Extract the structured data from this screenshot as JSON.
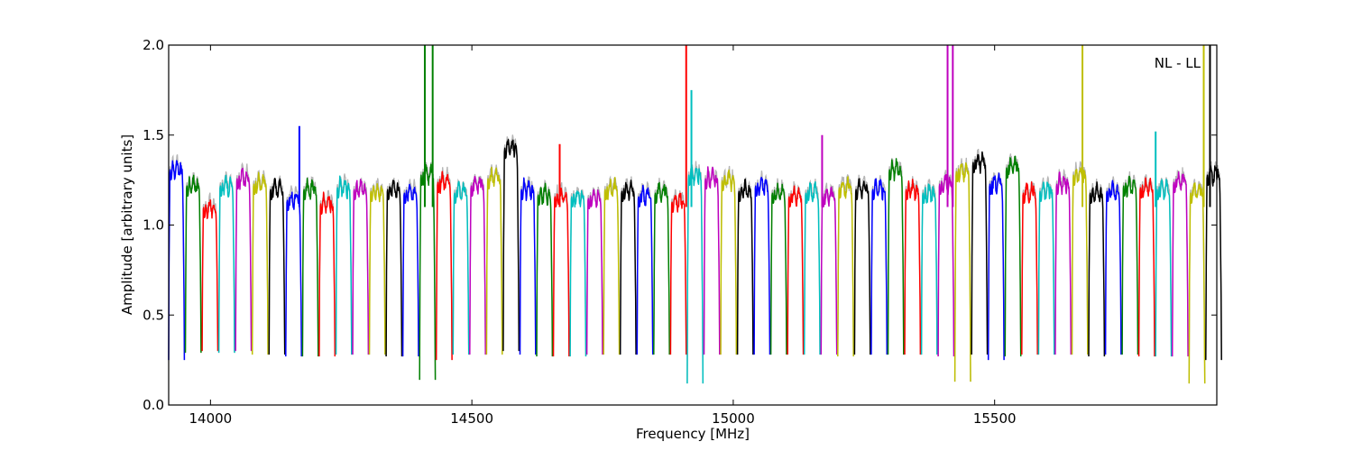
{
  "chart_data": {
    "type": "line",
    "title": "",
    "xlabel": "Frequency [MHz]",
    "ylabel": "Amplitude [arbitrary units]",
    "xlim": [
      13920,
      15925
    ],
    "ylim": [
      0.0,
      2.0
    ],
    "xticks": [
      14000,
      14500,
      15000,
      15500
    ],
    "xtick_labels": [
      "14000",
      "14500",
      "15000",
      "15500"
    ],
    "yticks": [
      0.0,
      0.5,
      1.0,
      1.5,
      2.0
    ],
    "ytick_labels": [
      "0.0",
      "0.5",
      "1.0",
      "1.5",
      "2.0"
    ],
    "grid": false,
    "annotation": "NL - LL",
    "annotation_position": "top-right",
    "subband_width_mhz": 32,
    "color_cycle": [
      "#0000ff",
      "#008000",
      "#ff0000",
      "#00bfbf",
      "#bf00bf",
      "#bfbf00",
      "#000000"
    ],
    "background_series_color": "#b5b5b5",
    "subband_start_mhz": [
      13920,
      13952,
      13984,
      14016,
      14048,
      14080,
      14112,
      14144,
      14176,
      14208,
      14240,
      14272,
      14304,
      14336,
      14368,
      14400,
      14432,
      14464,
      14496,
      14528,
      14560,
      14592,
      14624,
      14656,
      14688,
      14720,
      14752,
      14784,
      14816,
      14848,
      14880,
      14912,
      14944,
      14976,
      15008,
      15040,
      15072,
      15104,
      15136,
      15168,
      15200,
      15232,
      15264,
      15296,
      15328,
      15360,
      15392,
      15424,
      15456,
      15488,
      15520,
      15552,
      15584,
      15616,
      15648,
      15680,
      15712,
      15744,
      15776,
      15808,
      15840,
      15872,
      15904
    ],
    "subband_plateau": [
      1.33,
      1.24,
      1.12,
      1.24,
      1.28,
      1.25,
      1.22,
      1.16,
      1.22,
      1.14,
      1.23,
      1.22,
      1.21,
      1.22,
      1.2,
      1.3,
      1.26,
      1.2,
      1.24,
      1.28,
      1.45,
      1.22,
      1.19,
      1.18,
      1.18,
      1.17,
      1.22,
      1.21,
      1.18,
      1.2,
      1.15,
      1.3,
      1.28,
      1.27,
      1.21,
      1.24,
      1.2,
      1.18,
      1.2,
      1.18,
      1.23,
      1.22,
      1.22,
      1.33,
      1.22,
      1.2,
      1.25,
      1.32,
      1.37,
      1.25,
      1.34,
      1.2,
      1.21,
      1.25,
      1.3,
      1.2,
      1.21,
      1.24,
      1.23,
      1.22,
      1.26,
      1.2,
      1.3
    ],
    "subband_minimum": [
      0.25,
      0.29,
      0.3,
      0.29,
      0.3,
      0.28,
      0.28,
      0.27,
      0.27,
      0.27,
      0.28,
      0.28,
      0.28,
      0.27,
      0.27,
      0.14,
      0.25,
      0.28,
      0.28,
      0.28,
      0.3,
      0.28,
      0.27,
      0.27,
      0.27,
      0.28,
      0.28,
      0.28,
      0.28,
      0.28,
      0.28,
      0.12,
      0.28,
      0.28,
      0.28,
      0.28,
      0.28,
      0.28,
      0.28,
      0.28,
      0.27,
      0.28,
      0.28,
      0.28,
      0.28,
      0.28,
      0.27,
      0.13,
      0.28,
      0.25,
      0.27,
      0.28,
      0.28,
      0.28,
      0.28,
      0.27,
      0.28,
      0.28,
      0.27,
      0.27,
      0.27,
      0.12,
      0.25
    ],
    "spikes": [
      {
        "x": 14170,
        "y": 1.55
      },
      {
        "x": 14410,
        "y": 2.0
      },
      {
        "x": 14425,
        "y": 2.0
      },
      {
        "x": 14668,
        "y": 1.45
      },
      {
        "x": 14910,
        "y": 2.0
      },
      {
        "x": 14920,
        "y": 1.75
      },
      {
        "x": 15170,
        "y": 1.5
      },
      {
        "x": 15410,
        "y": 2.0
      },
      {
        "x": 15420,
        "y": 2.0
      },
      {
        "x": 15668,
        "y": 2.0
      },
      {
        "x": 15808,
        "y": 1.52
      },
      {
        "x": 15900,
        "y": 2.0
      },
      {
        "x": 15912,
        "y": 2.0
      }
    ]
  }
}
